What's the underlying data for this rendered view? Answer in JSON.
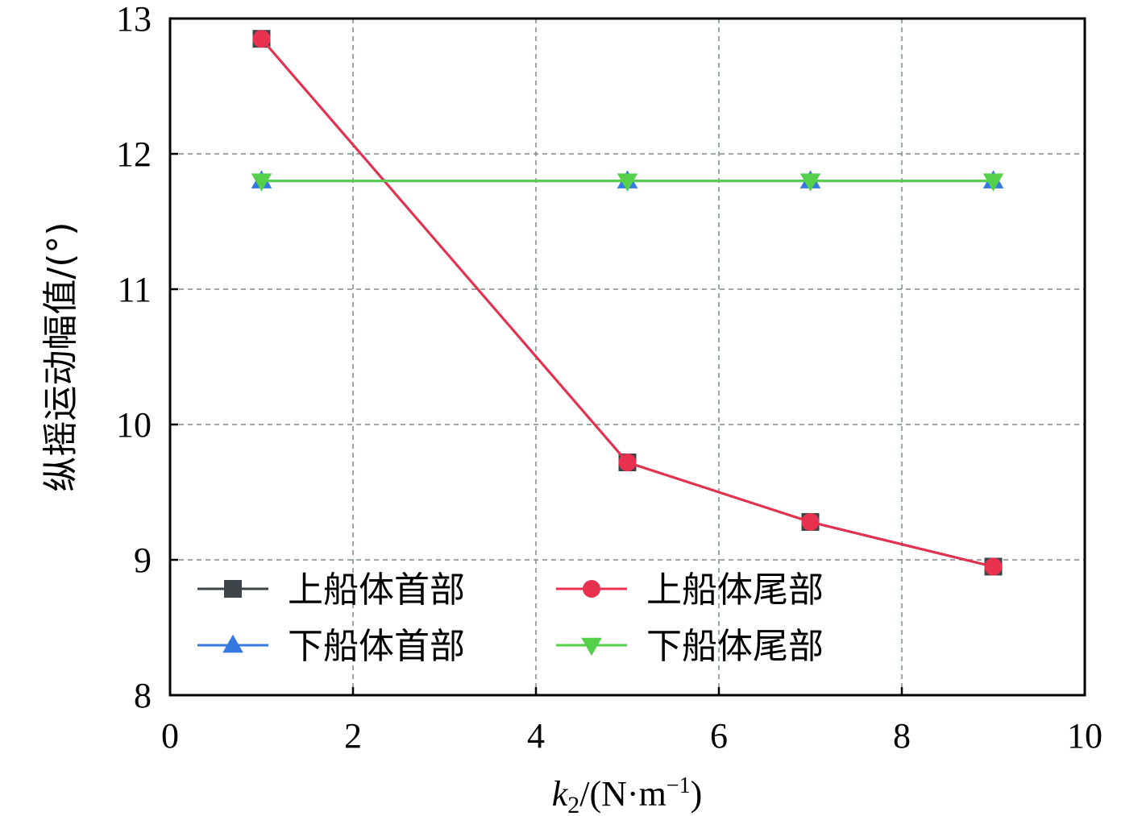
{
  "chart_data": {
    "type": "line",
    "x": [
      1,
      5,
      7,
      9
    ],
    "xlim": [
      0,
      10
    ],
    "ylim": [
      8,
      13
    ],
    "xticks": [
      "0",
      "2",
      "4",
      "6",
      "8",
      "10"
    ],
    "yticks": [
      "8",
      "9",
      "10",
      "11",
      "12",
      "13"
    ],
    "xlabel": {
      "var": "k",
      "sub": "2",
      "unit_prefix": "/(N·m",
      "sup": "−1",
      "unit_suffix": ")"
    },
    "ylabel": "纵摇运动幅值/(°)",
    "grid": true,
    "legend_position": "bottom-left",
    "series": [
      {
        "name": "上船体首部",
        "marker": "square",
        "color": "#3d4449",
        "values": [
          12.85,
          9.72,
          9.28,
          8.95
        ]
      },
      {
        "name": "上船体尾部",
        "marker": "circle",
        "color": "#e8314f",
        "values": [
          12.85,
          9.72,
          9.28,
          8.95
        ]
      },
      {
        "name": "下船体首部",
        "marker": "triangle-up",
        "color": "#3478e0",
        "values": [
          11.8,
          11.8,
          11.8,
          11.8
        ]
      },
      {
        "name": "下船体尾部",
        "marker": "triangle-down",
        "color": "#55d04a",
        "values": [
          11.8,
          11.8,
          11.8,
          11.8
        ]
      }
    ]
  }
}
